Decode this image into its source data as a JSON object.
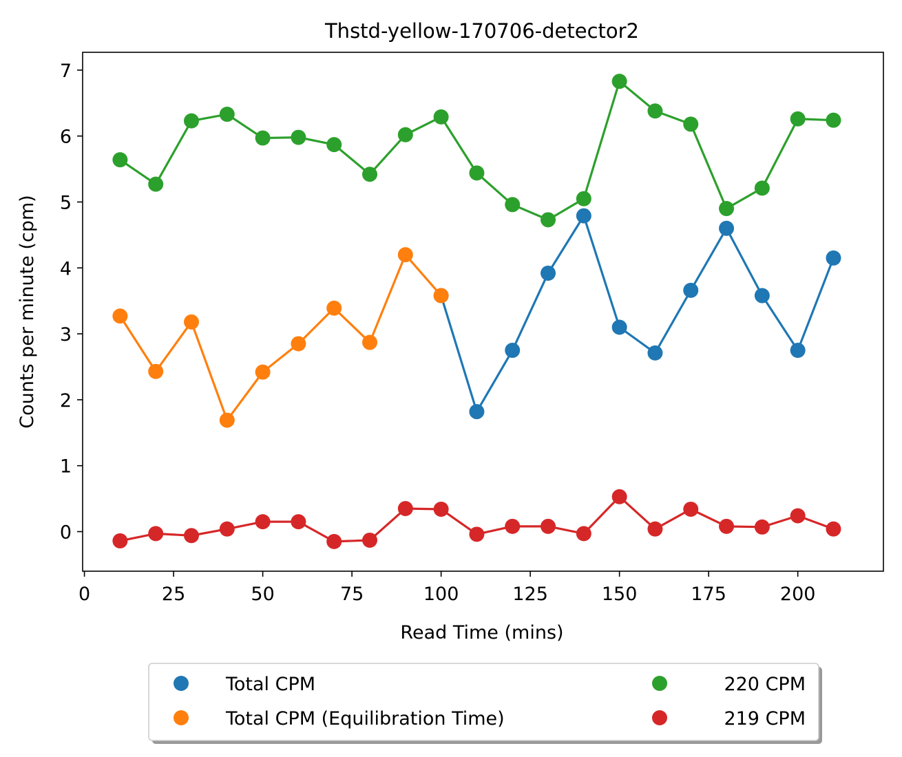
{
  "chart_data": {
    "type": "scatter",
    "title": "Thstd-yellow-170706-detector2",
    "xlabel": "Read Time (mins)",
    "ylabel": "Counts per minute (cpm)",
    "xlim": [
      -0.5,
      224
    ],
    "ylim": [
      -0.6,
      7.27
    ],
    "xticks": [
      0,
      25,
      50,
      75,
      100,
      125,
      150,
      175,
      200
    ],
    "yticks": [
      0,
      1,
      2,
      3,
      4,
      5,
      6,
      7
    ],
    "grid": false,
    "legend_position": "bottom-center",
    "series": [
      {
        "name": "Total CPM",
        "color": "#1f77b4",
        "x": [
          100,
          110,
          120,
          130,
          140,
          150,
          160,
          170,
          180,
          190,
          200,
          210
        ],
        "y": [
          3.58,
          1.82,
          2.75,
          3.92,
          4.79,
          3.1,
          2.71,
          3.66,
          4.6,
          3.58,
          2.75,
          4.15
        ]
      },
      {
        "name": "Total CPM (Equilibration Time)",
        "color": "#ff7f0e",
        "x": [
          10,
          20,
          30,
          40,
          50,
          60,
          70,
          80,
          90,
          100
        ],
        "y": [
          3.27,
          2.43,
          3.18,
          1.69,
          2.42,
          2.85,
          3.39,
          2.87,
          4.2,
          3.58
        ]
      },
      {
        "name": "220 CPM",
        "color": "#2ca02c",
        "x": [
          10,
          20,
          30,
          40,
          50,
          60,
          70,
          80,
          90,
          100,
          110,
          120,
          130,
          140,
          150,
          160,
          170,
          180,
          190,
          200,
          210
        ],
        "y": [
          5.64,
          5.27,
          6.23,
          6.33,
          5.97,
          5.98,
          5.87,
          5.42,
          6.02,
          6.29,
          5.44,
          4.96,
          4.73,
          5.05,
          6.83,
          6.38,
          6.18,
          4.9,
          5.21,
          6.26,
          6.24
        ]
      },
      {
        "name": "219 CPM",
        "color": "#d62728",
        "x": [
          10,
          20,
          30,
          40,
          50,
          60,
          70,
          80,
          90,
          100,
          110,
          120,
          130,
          140,
          150,
          160,
          170,
          180,
          190,
          200,
          210
        ],
        "y": [
          -0.14,
          -0.03,
          -0.06,
          0.04,
          0.15,
          0.15,
          -0.15,
          -0.13,
          0.35,
          0.34,
          -0.04,
          0.08,
          0.08,
          -0.03,
          0.53,
          0.04,
          0.34,
          0.08,
          0.07,
          0.24,
          0.04
        ]
      }
    ],
    "legend_order": [
      0,
      2,
      1,
      3
    ]
  }
}
